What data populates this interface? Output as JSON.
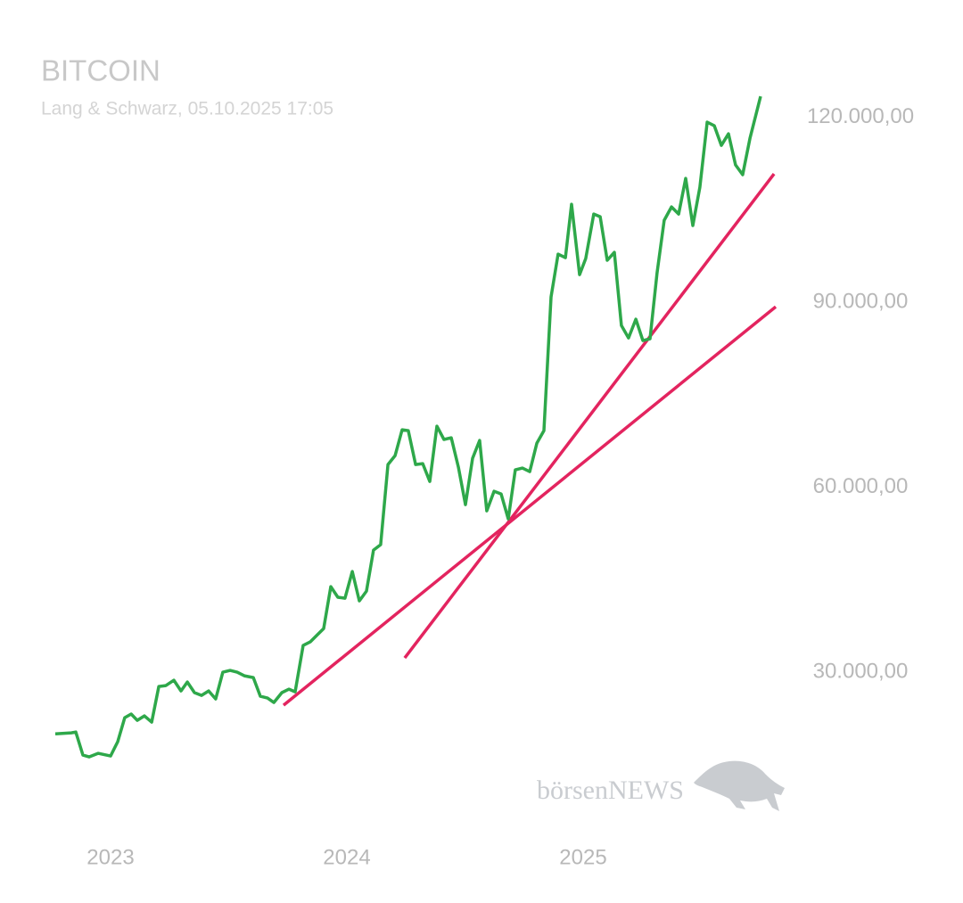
{
  "chart_data": {
    "type": "line",
    "title": "BITCOIN",
    "subtitle": "Lang & Schwarz, 05.10.2025 17:05",
    "watermark": "börsenNEWS",
    "xlim": [
      2022.6,
      2026
    ],
    "xticks": [
      2023,
      2024,
      2025
    ],
    "ylim": [
      5000,
      125000
    ],
    "yticks": [
      {
        "value": 30000,
        "label": "30.000,00"
      },
      {
        "value": 60000,
        "label": "60.000,00"
      },
      {
        "value": 90000,
        "label": "90.000,00"
      },
      {
        "value": 120000,
        "label": "120.000,00"
      }
    ],
    "grid": false,
    "series": [
      {
        "color": "#2ea84a",
        "x": [
          2022.766,
          2022.834,
          2022.853,
          2022.883,
          2022.909,
          2022.947,
          2023.0,
          2023.03,
          2023.06,
          2023.087,
          2023.113,
          2023.143,
          2023.174,
          2023.204,
          2023.234,
          2023.268,
          2023.298,
          2023.325,
          2023.355,
          2023.385,
          2023.415,
          2023.445,
          2023.475,
          2023.506,
          2023.536,
          2023.566,
          2023.604,
          2023.634,
          2023.664,
          2023.691,
          2023.725,
          2023.755,
          2023.781,
          2023.815,
          2023.845,
          2023.875,
          2023.902,
          2023.932,
          2023.962,
          2023.992,
          2024.023,
          2024.053,
          2024.083,
          2024.113,
          2024.143,
          2024.174,
          2024.204,
          2024.234,
          2024.26,
          2024.291,
          2024.321,
          2024.351,
          2024.381,
          2024.411,
          2024.442,
          2024.472,
          2024.502,
          2024.532,
          2024.562,
          2024.592,
          2024.623,
          2024.653,
          2024.683,
          2024.713,
          2024.743,
          2024.774,
          2024.804,
          2024.834,
          2024.864,
          2024.894,
          2024.925,
          2024.951,
          2024.985,
          2025.011,
          2025.045,
          2025.072,
          2025.102,
          2025.132,
          2025.162,
          2025.192,
          2025.223,
          2025.253,
          2025.283,
          2025.313,
          2025.343,
          2025.374,
          2025.404,
          2025.434,
          2025.464,
          2025.494,
          2025.525,
          2025.555,
          2025.585,
          2025.615,
          2025.645,
          2025.675,
          2025.706,
          2025.751
        ],
        "values": [
          20000,
          20170,
          20300,
          16550,
          16260,
          16840,
          16410,
          18720,
          22630,
          23210,
          22190,
          22920,
          21900,
          27690,
          27830,
          28700,
          26960,
          28410,
          26680,
          26240,
          26960,
          25660,
          30000,
          30290,
          30000,
          29420,
          29130,
          26100,
          25810,
          25080,
          26680,
          27250,
          26820,
          34340,
          34920,
          36070,
          37080,
          43880,
          42150,
          42000,
          46340,
          41570,
          43160,
          49810,
          50680,
          63690,
          65130,
          69330,
          69180,
          63690,
          63830,
          60940,
          69900,
          67740,
          68020,
          63250,
          57180,
          64700,
          67590,
          56170,
          59350,
          58920,
          54870,
          62820,
          63110,
          62530,
          67160,
          69180,
          90870,
          97810,
          97230,
          105900,
          94480,
          97090,
          104310,
          103880,
          96800,
          98100,
          86240,
          84220,
          87250,
          83780,
          84070,
          94770,
          103300,
          105470,
          104310,
          110100,
          102440,
          108650,
          119210,
          118630,
          115450,
          117330,
          112270,
          110680,
          116600,
          123400
        ]
      }
    ],
    "trendlines": [
      {
        "color": "#e3245f",
        "x": [
          2023.732,
          2025.815
        ],
        "values": [
          24650,
          89280
        ]
      },
      {
        "color": "#e3245f",
        "x": [
          2024.245,
          2025.808
        ],
        "values": [
          32310,
          110820
        ]
      }
    ]
  }
}
